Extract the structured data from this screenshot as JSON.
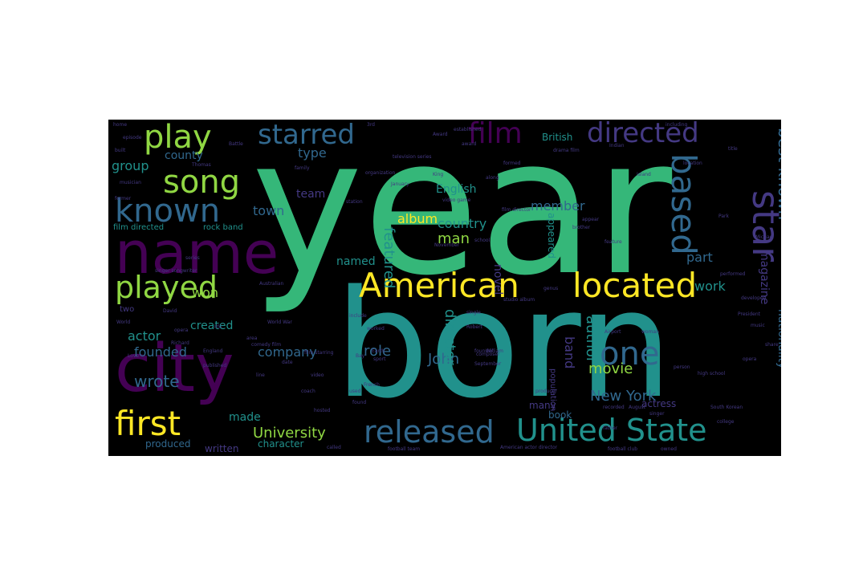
{
  "palette": {
    "background": "#000000",
    "green": "#35b779",
    "teal": "#21918c",
    "blue": "#31688e",
    "indigo": "#443983",
    "purple": "#440154",
    "yellow": "#fde725",
    "lime": "#90d743"
  },
  "words": [
    {
      "text": "year",
      "c": "green"
    },
    {
      "text": "born",
      "c": "teal"
    },
    {
      "text": "name",
      "c": "purple"
    },
    {
      "text": "city",
      "c": "purple"
    },
    {
      "text": "American",
      "c": "yellow"
    },
    {
      "text": "located",
      "c": "yellow"
    },
    {
      "text": "United State",
      "c": "teal"
    },
    {
      "text": "released",
      "c": "blue"
    },
    {
      "text": "first",
      "c": "yellow"
    },
    {
      "text": "played",
      "c": "lime"
    },
    {
      "text": "known",
      "c": "blue"
    },
    {
      "text": "song",
      "c": "lime"
    },
    {
      "text": "play",
      "c": "lime"
    },
    {
      "text": "starred",
      "c": "blue"
    },
    {
      "text": "film",
      "c": "purple"
    },
    {
      "text": "directed",
      "c": "indigo"
    },
    {
      "text": "based",
      "c": "blue"
    },
    {
      "text": "star",
      "c": "indigo"
    },
    {
      "text": "one",
      "c": "blue"
    },
    {
      "text": "best known",
      "c": "blue"
    },
    {
      "text": "New York",
      "c": "blue"
    },
    {
      "text": "University",
      "c": "lime"
    },
    {
      "text": "wrote",
      "c": "blue"
    },
    {
      "text": "actor",
      "c": "teal"
    },
    {
      "text": "company",
      "c": "blue"
    },
    {
      "text": "founded",
      "c": "blue"
    },
    {
      "text": "role",
      "c": "blue"
    },
    {
      "text": "John",
      "c": "blue"
    },
    {
      "text": "director",
      "c": "teal"
    },
    {
      "text": "country",
      "c": "teal"
    },
    {
      "text": "album",
      "c": "yellow"
    },
    {
      "text": "man",
      "c": "lime"
    },
    {
      "text": "member",
      "c": "blue"
    },
    {
      "text": "featured",
      "c": "teal"
    },
    {
      "text": "movie",
      "c": "lime"
    },
    {
      "text": "author",
      "c": "teal"
    },
    {
      "text": "band",
      "c": "indigo"
    },
    {
      "text": "part",
      "c": "blue"
    },
    {
      "text": "work",
      "c": "teal"
    },
    {
      "text": "magazine",
      "c": "indigo"
    },
    {
      "text": "nationality",
      "c": "blue"
    },
    {
      "text": "town",
      "c": "blue"
    },
    {
      "text": "type",
      "c": "blue"
    },
    {
      "text": "group",
      "c": "teal"
    },
    {
      "text": "county",
      "c": "blue"
    },
    {
      "text": "named",
      "c": "teal"
    },
    {
      "text": "novel",
      "c": "indigo"
    },
    {
      "text": "appeared",
      "c": "teal"
    },
    {
      "text": "English",
      "c": "teal"
    },
    {
      "text": "team",
      "c": "indigo"
    },
    {
      "text": "won",
      "c": "lime"
    },
    {
      "text": "created",
      "c": "teal"
    },
    {
      "text": "made",
      "c": "teal"
    },
    {
      "text": "produced",
      "c": "blue"
    },
    {
      "text": "written",
      "c": "indigo"
    },
    {
      "text": "character",
      "c": "teal"
    },
    {
      "text": "book",
      "c": "blue"
    },
    {
      "text": "many",
      "c": "indigo"
    },
    {
      "text": "actress",
      "c": "indigo"
    },
    {
      "text": "British",
      "c": "teal"
    },
    {
      "text": "film directed",
      "c": "teal"
    },
    {
      "text": "rock band",
      "c": "teal"
    },
    {
      "text": "two",
      "c": "indigo"
    },
    {
      "text": "population",
      "c": "indigo"
    },
    {
      "text": "episode",
      "c": "indigo"
    },
    {
      "text": "built",
      "c": "indigo"
    },
    {
      "text": "Battle",
      "c": "indigo"
    },
    {
      "text": "family",
      "c": "indigo"
    },
    {
      "text": "musician",
      "c": "indigo"
    },
    {
      "text": "Thomas",
      "c": "indigo"
    },
    {
      "text": "King",
      "c": "indigo"
    },
    {
      "text": "Island",
      "c": "indigo"
    },
    {
      "text": "drama film",
      "c": "indigo"
    },
    {
      "text": "including",
      "c": "indigo"
    },
    {
      "text": "title",
      "c": "indigo"
    },
    {
      "text": "Park",
      "c": "indigo"
    },
    {
      "text": "brother",
      "c": "indigo"
    },
    {
      "text": "school",
      "c": "indigo"
    },
    {
      "text": "November",
      "c": "indigo"
    },
    {
      "text": "studio album",
      "c": "indigo"
    },
    {
      "text": "single",
      "c": "indigo"
    },
    {
      "text": "Robert",
      "c": "indigo"
    },
    {
      "text": "David",
      "c": "indigo"
    },
    {
      "text": "World",
      "c": "indigo"
    },
    {
      "text": "Australian",
      "c": "indigo"
    },
    {
      "text": "singer songwriter",
      "c": "indigo"
    },
    {
      "text": "England",
      "c": "indigo"
    },
    {
      "text": "published",
      "c": "indigo"
    },
    {
      "text": "comedy film",
      "c": "indigo"
    },
    {
      "text": "film starring",
      "c": "indigo"
    },
    {
      "text": "coach",
      "c": "indigo"
    },
    {
      "text": "hosted",
      "c": "indigo"
    },
    {
      "text": "called",
      "c": "indigo"
    },
    {
      "text": "founder",
      "c": "indigo"
    },
    {
      "text": "composer",
      "c": "indigo"
    },
    {
      "text": "September",
      "c": "indigo"
    },
    {
      "text": "football team",
      "c": "indigo"
    },
    {
      "text": "American actor director",
      "c": "indigo"
    },
    {
      "text": "football club",
      "c": "indigo"
    },
    {
      "text": "owned",
      "c": "indigo"
    },
    {
      "text": "college",
      "c": "indigo"
    },
    {
      "text": "August",
      "c": "indigo"
    },
    {
      "text": "singer",
      "c": "indigo"
    },
    {
      "text": "recorded",
      "c": "indigo"
    },
    {
      "text": "producer",
      "c": "indigo"
    },
    {
      "text": "South Korean",
      "c": "indigo"
    },
    {
      "text": "high school",
      "c": "indigo"
    },
    {
      "text": "person",
      "c": "indigo"
    },
    {
      "text": "Airport",
      "c": "indigo"
    },
    {
      "text": "father",
      "c": "indigo"
    },
    {
      "text": "music",
      "c": "indigo"
    },
    {
      "text": "Michael",
      "c": "indigo"
    },
    {
      "text": "developed",
      "c": "indigo"
    },
    {
      "text": "performed",
      "c": "indigo"
    },
    {
      "text": "film director",
      "c": "indigo"
    },
    {
      "text": "January",
      "c": "indigo"
    },
    {
      "text": "organization",
      "c": "indigo"
    },
    {
      "text": "television series",
      "c": "indigo"
    },
    {
      "text": "established",
      "c": "indigo"
    },
    {
      "text": "formed",
      "c": "indigo"
    },
    {
      "text": "award",
      "c": "indigo"
    },
    {
      "text": "video game",
      "c": "indigo"
    },
    {
      "text": "station",
      "c": "indigo"
    },
    {
      "text": "feature",
      "c": "indigo"
    },
    {
      "text": "appear",
      "c": "indigo"
    },
    {
      "text": "include",
      "c": "indigo"
    },
    {
      "text": "along",
      "c": "indigo"
    },
    {
      "text": "location",
      "c": "indigo"
    },
    {
      "text": "genus",
      "c": "indigo"
    },
    {
      "text": "sport",
      "c": "indigo"
    },
    {
      "text": "William",
      "c": "indigo"
    },
    {
      "text": "Richard",
      "c": "indigo"
    },
    {
      "text": "opera",
      "c": "indigo"
    },
    {
      "text": "area",
      "c": "indigo"
    },
    {
      "text": "life",
      "c": "indigo"
    },
    {
      "text": "Indian",
      "c": "indigo"
    },
    {
      "text": "woman",
      "c": "indigo"
    },
    {
      "text": "Bay",
      "c": "indigo"
    },
    {
      "text": "Earth",
      "c": "indigo"
    },
    {
      "text": "used",
      "c": "indigo"
    },
    {
      "text": "found",
      "c": "indigo"
    },
    {
      "text": "French",
      "c": "indigo"
    },
    {
      "text": "World War",
      "c": "indigo"
    },
    {
      "text": "Love",
      "c": "indigo"
    },
    {
      "text": "line",
      "c": "indigo"
    },
    {
      "text": "date",
      "c": "indigo"
    },
    {
      "text": "video",
      "c": "indigo"
    },
    {
      "text": "home",
      "c": "indigo"
    },
    {
      "text": "former",
      "c": "indigo"
    },
    {
      "text": "series",
      "c": "indigo"
    },
    {
      "text": "3rd",
      "c": "indigo"
    },
    {
      "text": "worked",
      "c": "indigo"
    },
    {
      "text": "share",
      "c": "indigo"
    },
    {
      "text": "Award",
      "c": "indigo"
    },
    {
      "text": "President",
      "c": "indigo"
    },
    {
      "text": "opera",
      "c": "indigo"
    }
  ]
}
